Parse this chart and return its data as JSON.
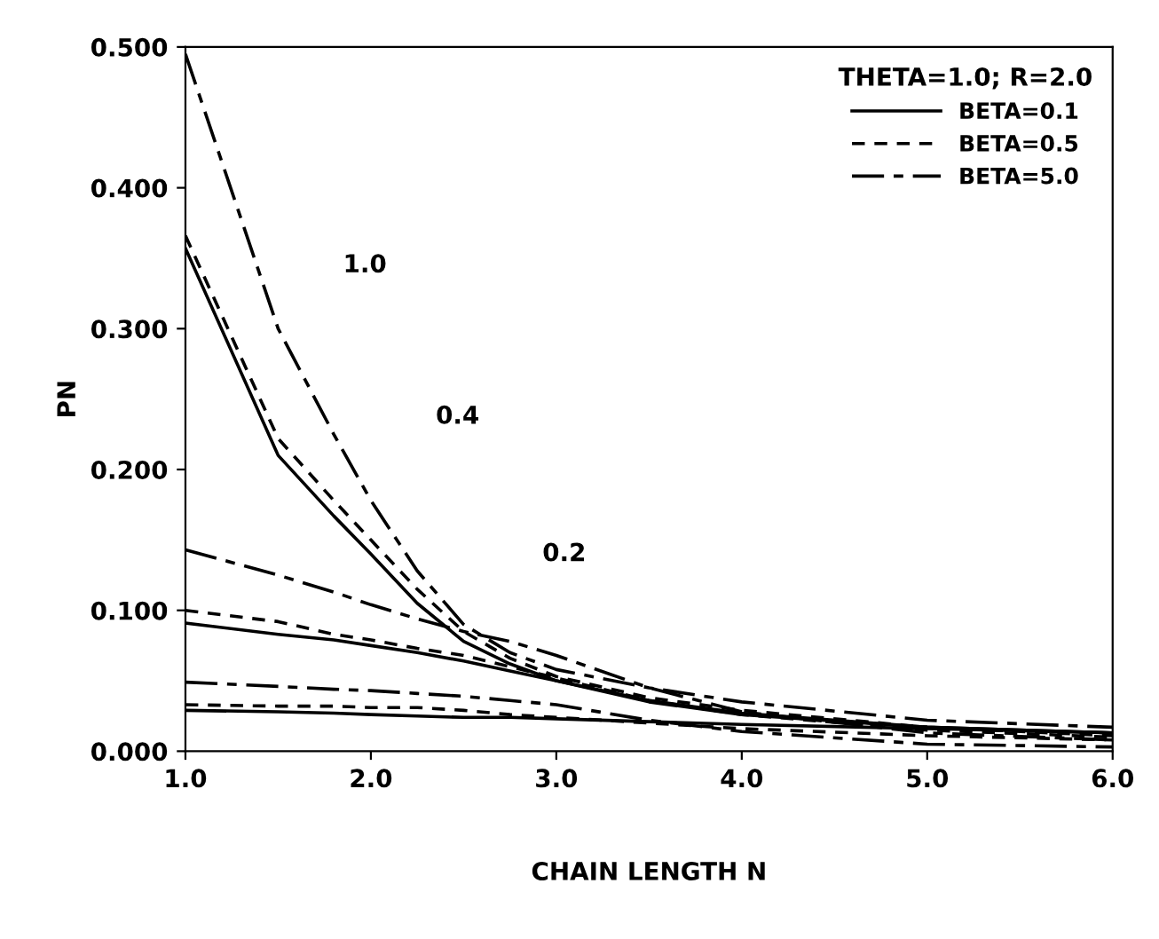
{
  "chart_data": {
    "type": "line",
    "xlabel": "CHAIN LENGTH N",
    "ylabel": "PN",
    "legend_title": "THETA=1.0; R=2.0",
    "legend": "top right",
    "grid": false,
    "marker": "none",
    "x": [
      1,
      1.5,
      1.8,
      2,
      2.25,
      2.5,
      2.75,
      3,
      3.5,
      4,
      5,
      6
    ],
    "xlim": [
      1,
      6
    ],
    "xticks": [
      {
        "value": 1,
        "label": "1.0"
      },
      {
        "value": 2,
        "label": "2.0"
      },
      {
        "value": 3,
        "label": "3.0"
      },
      {
        "value": 4,
        "label": "4.0"
      },
      {
        "value": 5,
        "label": "5.0"
      },
      {
        "value": 6,
        "label": "6.0"
      }
    ],
    "ylim": [
      0,
      0.5
    ],
    "yticks": [
      {
        "value": 0,
        "label": "0.000"
      },
      {
        "value": 0.1,
        "label": "0.100"
      },
      {
        "value": 0.2,
        "label": "0.200"
      },
      {
        "value": 0.3,
        "label": "0.300"
      },
      {
        "value": 0.4,
        "label": "0.400"
      },
      {
        "value": 0.5,
        "label": "0.500"
      }
    ],
    "series": [
      {
        "name": "BETA=0.1",
        "color": "#000000",
        "line_style": "solid",
        "values": [
          0.357,
          0.21,
          0.167,
          0.14,
          0.105,
          0.078,
          0.062,
          0.05,
          0.035,
          0.026,
          0.017,
          0.013
        ]
      },
      {
        "name": "BETA=0.5",
        "color": "#000000",
        "line_style": "dashed",
        "values": [
          0.366,
          0.222,
          0.178,
          0.15,
          0.115,
          0.085,
          0.066,
          0.053,
          0.038,
          0.029,
          0.017,
          0.011
        ]
      },
      {
        "name": "BETA=5.0",
        "color": "#000000",
        "line_style": "dashdot",
        "values": [
          0.495,
          0.3,
          0.225,
          0.178,
          0.128,
          0.09,
          0.07,
          0.058,
          0.045,
          0.035,
          0.022,
          0.017
        ]
      },
      {
        "color": "#000000",
        "line_style": "solid",
        "values": [
          0.091,
          0.083,
          0.079,
          0.075,
          0.07,
          0.064,
          0.057,
          0.05,
          0.036,
          0.027,
          0.017,
          0.013
        ]
      },
      {
        "color": "#000000",
        "line_style": "dashed",
        "values": [
          0.1,
          0.092,
          0.083,
          0.079,
          0.073,
          0.068,
          0.06,
          0.052,
          0.036,
          0.026,
          0.015,
          0.01
        ]
      },
      {
        "color": "#000000",
        "line_style": "dashdot",
        "values": [
          0.143,
          0.125,
          0.113,
          0.104,
          0.094,
          0.085,
          0.078,
          0.068,
          0.045,
          0.028,
          0.013,
          0.008
        ]
      },
      {
        "color": "#000000",
        "line_style": "solid",
        "values": [
          0.029,
          0.028,
          0.027,
          0.026,
          0.025,
          0.024,
          0.024,
          0.023,
          0.021,
          0.019,
          0.016,
          0.013
        ]
      },
      {
        "color": "#000000",
        "line_style": "dashed",
        "values": [
          0.033,
          0.032,
          0.032,
          0.031,
          0.031,
          0.029,
          0.026,
          0.024,
          0.02,
          0.016,
          0.011,
          0.008
        ]
      },
      {
        "color": "#000000",
        "line_style": "dashdot",
        "values": [
          0.049,
          0.046,
          0.044,
          0.043,
          0.041,
          0.039,
          0.036,
          0.033,
          0.022,
          0.014,
          0.005,
          0.003
        ]
      }
    ],
    "annotations": [
      "1.0",
      "0.4",
      "0.2"
    ]
  }
}
